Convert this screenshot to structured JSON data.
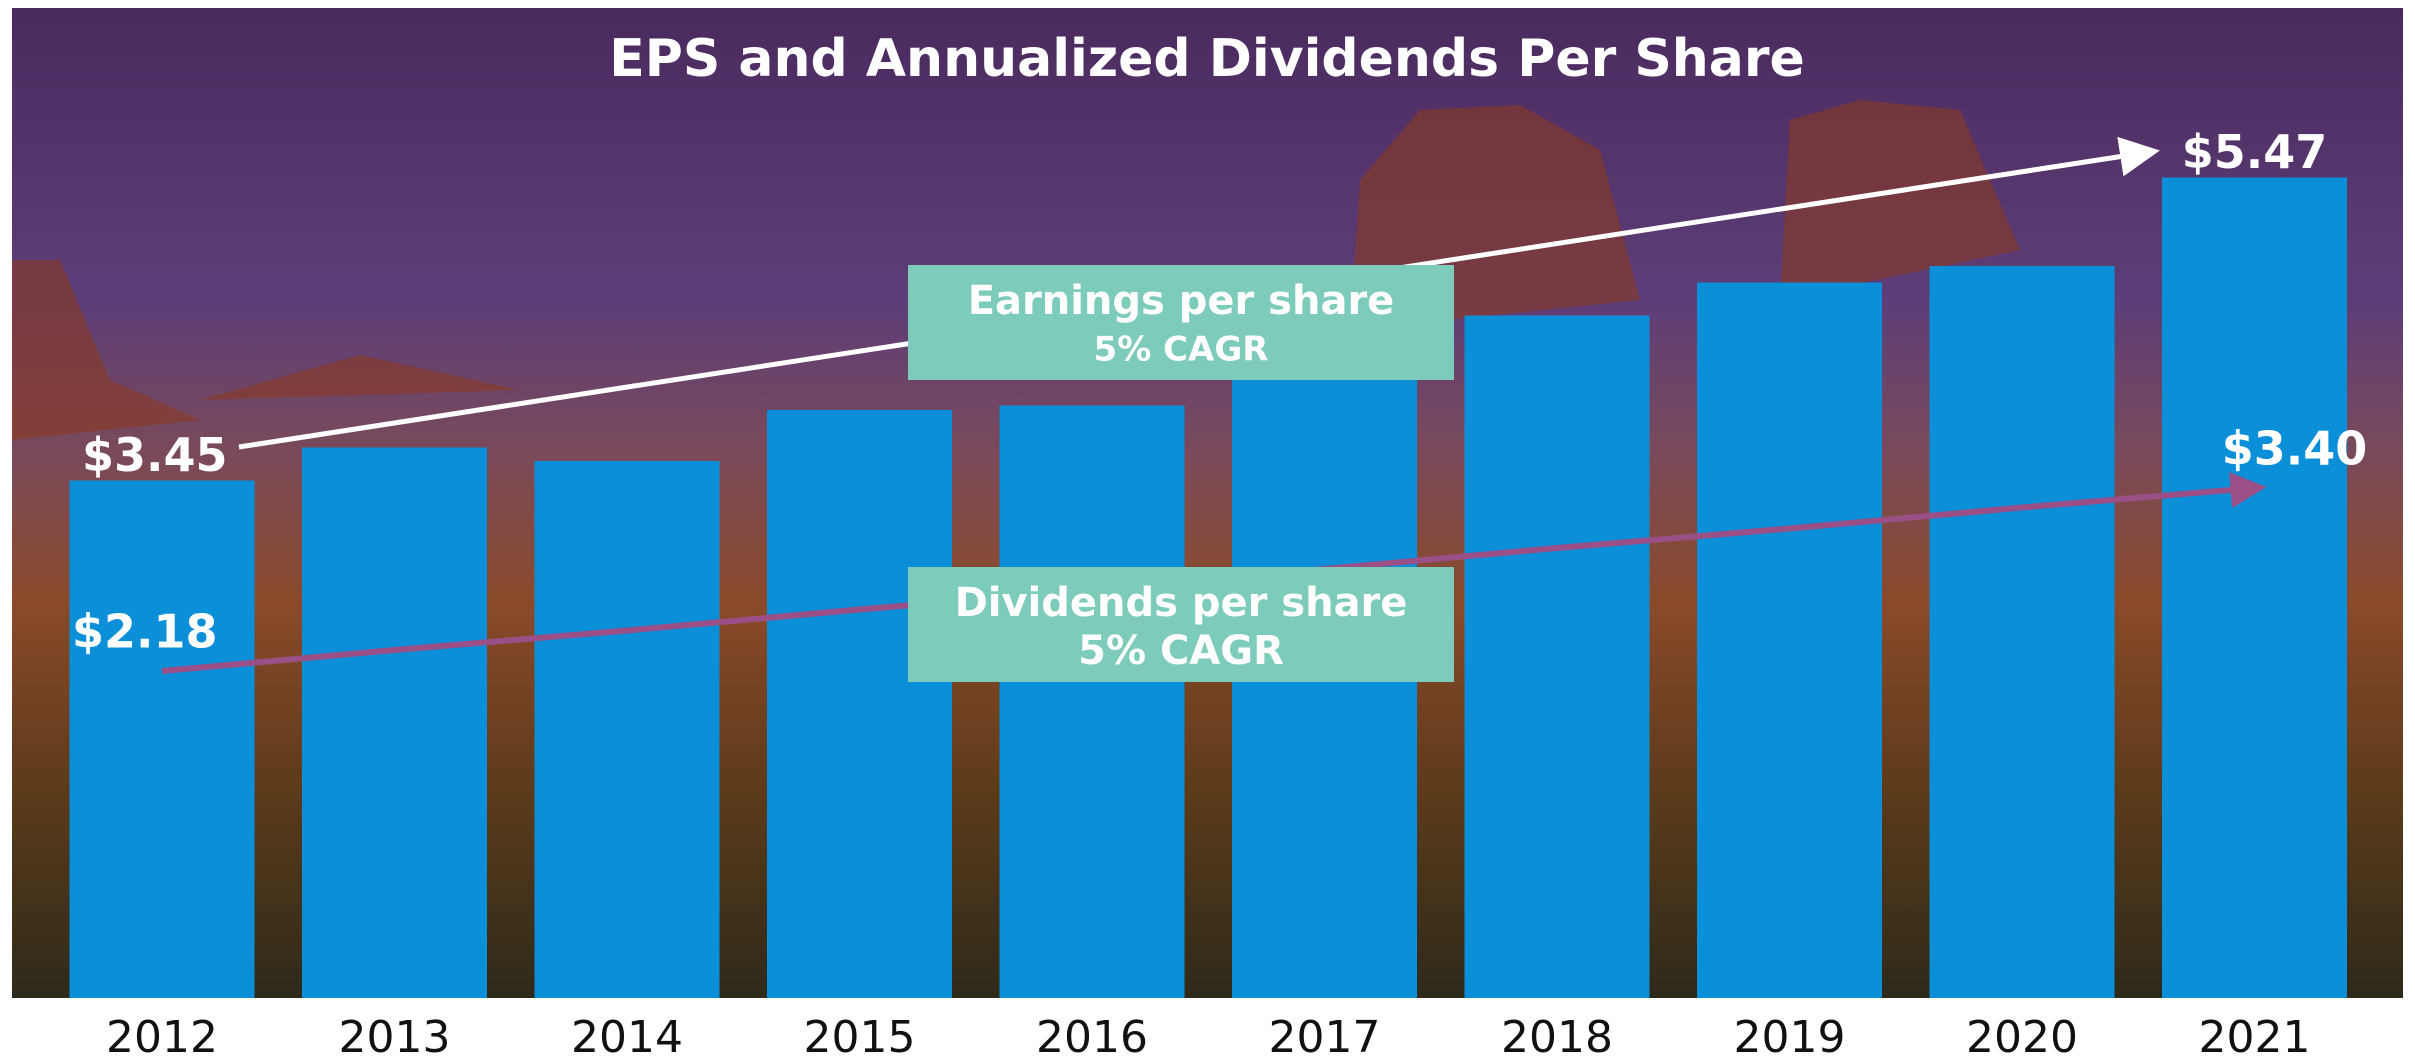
{
  "chart_data": {
    "type": "bar",
    "title": "EPS and Annualized Dividends Per Share",
    "categories": [
      "2012",
      "2013",
      "2014",
      "2015",
      "2016",
      "2017",
      "2018",
      "2019",
      "2020",
      "2021"
    ],
    "series": [
      {
        "color": "#0a8fd8",
        "values": [
          3.45,
          3.67,
          3.58,
          3.92,
          3.95,
          4.2,
          4.55,
          4.77,
          4.88,
          5.47
        ],
        "value_labels": [
          "$3.45",
          null,
          null,
          null,
          null,
          null,
          null,
          null,
          null,
          "$5.47"
        ]
      },
      {
        "type": "line",
        "color": "#9a4f86",
        "values": [
          2.18,
          2.32,
          2.45,
          2.59,
          2.72,
          2.86,
          3.0,
          3.13,
          3.27,
          3.4
        ],
        "value_labels": [
          "$2.18",
          null,
          null,
          null,
          null,
          null,
          null,
          null,
          null,
          "$3.40"
        ]
      }
    ],
    "annotations": [
      {
        "text": "Earnings per share",
        "subtext": "5% CAGR"
      },
      {
        "text": "Dividends per share",
        "subtext": "5% CAGR"
      }
    ],
    "ylim": [
      0,
      6.5
    ]
  }
}
